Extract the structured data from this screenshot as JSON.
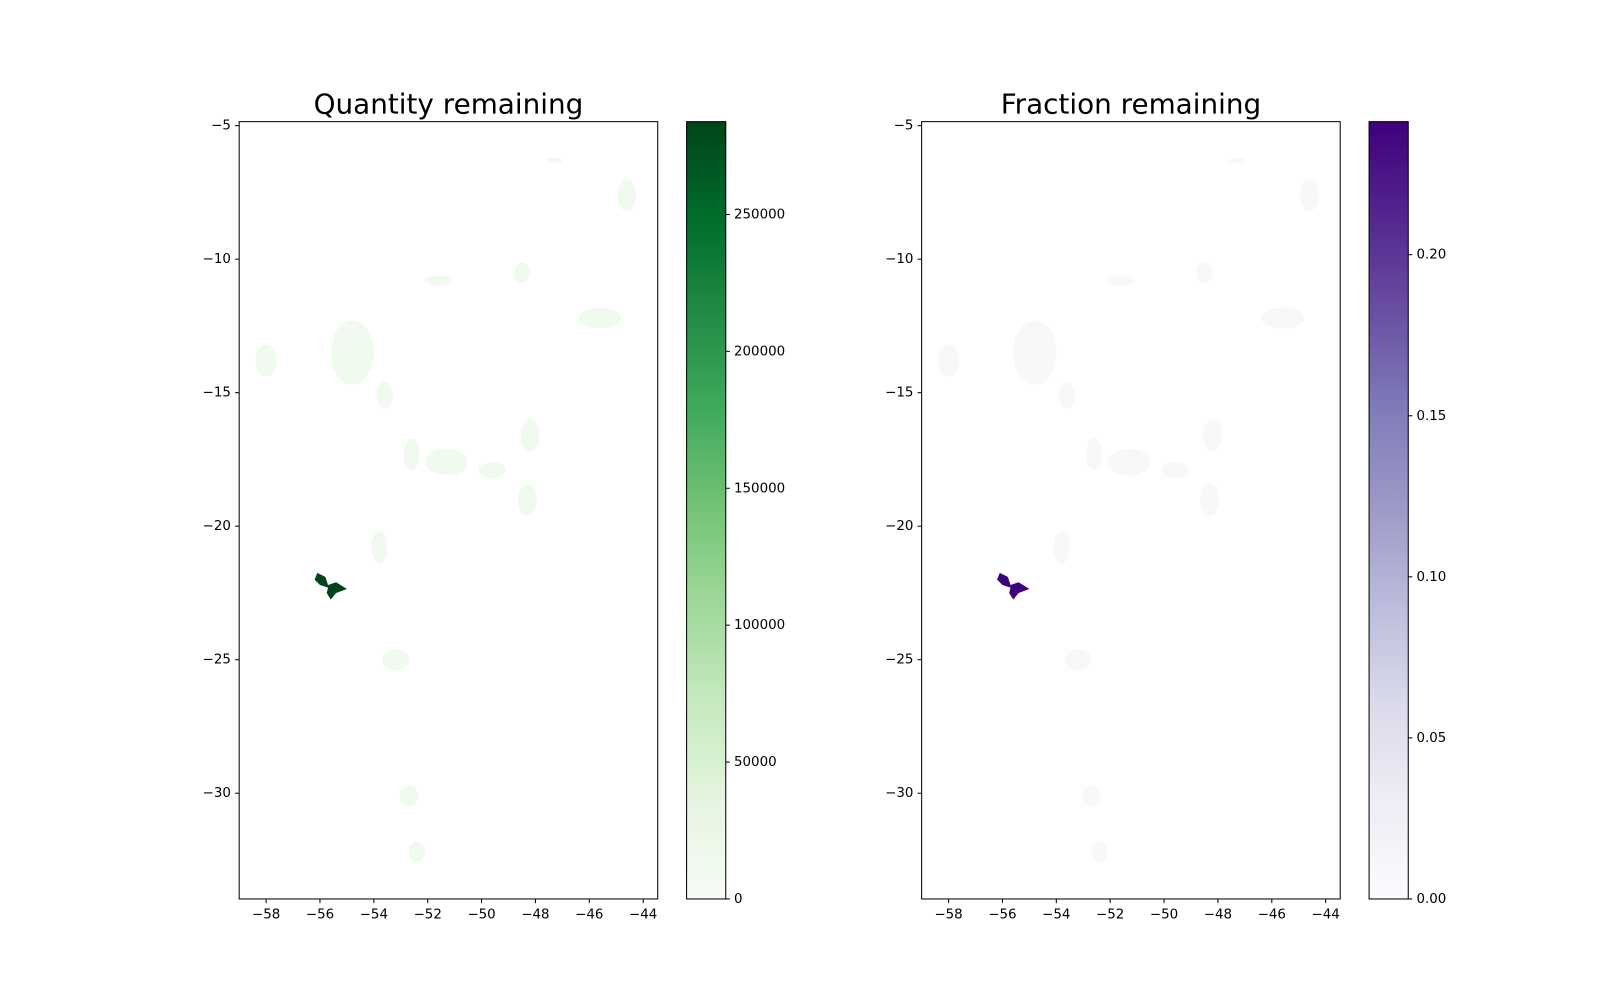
{
  "chart_data": [
    {
      "type": "map",
      "title": "Quantity remaining",
      "xlim": [
        -59.0,
        -43.46
      ],
      "ylim": [
        -33.96,
        -4.85
      ],
      "xticks": [
        {
          "value": -58,
          "label": "−58"
        },
        {
          "value": -56,
          "label": "−56"
        },
        {
          "value": -54,
          "label": "−54"
        },
        {
          "value": -52,
          "label": "−52"
        },
        {
          "value": -50,
          "label": "−50"
        },
        {
          "value": -48,
          "label": "−48"
        },
        {
          "value": -46,
          "label": "−46"
        },
        {
          "value": -44,
          "label": "−44"
        }
      ],
      "yticks": [
        {
          "value": -5,
          "label": "−5"
        },
        {
          "value": -10,
          "label": "−10"
        },
        {
          "value": -15,
          "label": "−15"
        },
        {
          "value": -20,
          "label": "−20"
        },
        {
          "value": -25,
          "label": "−25"
        },
        {
          "value": -30,
          "label": "−30"
        }
      ],
      "clim": [
        0,
        283900
      ],
      "cticks": [
        0,
        50000,
        100000,
        150000,
        200000,
        250000
      ],
      "cmap_colors": [
        "#f7fcf5",
        "#e5f5e0",
        "#c7e9c0",
        "#a1d99b",
        "#74c476",
        "#41ab5d",
        "#238b45",
        "#006d2c",
        "#00441b"
      ]
    },
    {
      "type": "map",
      "title": "Fraction remaining",
      "xlim": [
        -59.0,
        -43.46
      ],
      "ylim": [
        -33.96,
        -4.85
      ],
      "xticks": [
        {
          "value": -58,
          "label": "−58"
        },
        {
          "value": -56,
          "label": "−56"
        },
        {
          "value": -54,
          "label": "−54"
        },
        {
          "value": -52,
          "label": "−52"
        },
        {
          "value": -50,
          "label": "−50"
        },
        {
          "value": -48,
          "label": "−48"
        },
        {
          "value": -46,
          "label": "−46"
        },
        {
          "value": -44,
          "label": "−44"
        }
      ],
      "yticks": [
        {
          "value": -5,
          "label": "−5"
        },
        {
          "value": -10,
          "label": "−10"
        },
        {
          "value": -15,
          "label": "−15"
        },
        {
          "value": -20,
          "label": "−20"
        },
        {
          "value": -25,
          "label": "−25"
        },
        {
          "value": -30,
          "label": "−30"
        }
      ],
      "clim": [
        0,
        0.2413
      ],
      "cticks": [
        {
          "value": 0,
          "label": "0.00"
        },
        0.05,
        {
          "value": 0.1,
          "label": "0.10"
        },
        0.15,
        {
          "value": 0.2,
          "label": "0.20"
        }
      ],
      "cmap_colors": [
        "#fcfbfd",
        "#efedf5",
        "#dadaeb",
        "#bcbddc",
        "#9e9ac8",
        "#807dba",
        "#6a51a3",
        "#54278f",
        "#3f007d"
      ]
    }
  ]
}
